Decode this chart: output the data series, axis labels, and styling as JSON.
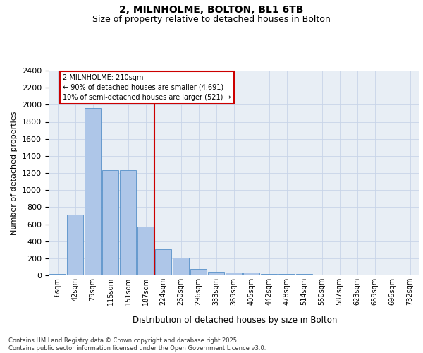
{
  "title_line1": "2, MILNHOLME, BOLTON, BL1 6TB",
  "title_line2": "Size of property relative to detached houses in Bolton",
  "xlabel": "Distribution of detached houses by size in Bolton",
  "ylabel": "Number of detached properties",
  "footnote": "Contains HM Land Registry data © Crown copyright and database right 2025.\nContains public sector information licensed under the Open Government Licence v3.0.",
  "bin_labels": [
    "6sqm",
    "42sqm",
    "79sqm",
    "115sqm",
    "151sqm",
    "187sqm",
    "224sqm",
    "260sqm",
    "296sqm",
    "333sqm",
    "369sqm",
    "405sqm",
    "442sqm",
    "478sqm",
    "514sqm",
    "550sqm",
    "587sqm",
    "623sqm",
    "659sqm",
    "696sqm",
    "732sqm"
  ],
  "bar_values": [
    15,
    710,
    1960,
    1235,
    1235,
    575,
    305,
    205,
    75,
    45,
    35,
    30,
    20,
    20,
    15,
    5,
    5,
    0,
    0,
    0,
    0
  ],
  "bar_color": "#aec6e8",
  "bar_edge_color": "#5590c8",
  "annotation_text": "2 MILNHOLME: 210sqm\n← 90% of detached houses are smaller (4,691)\n10% of semi-detached houses are larger (521) →",
  "vline_x": 6.0,
  "vline_color": "#cc0000",
  "annotation_box_color": "#cc0000",
  "ylim": [
    0,
    2400
  ],
  "yticks": [
    0,
    200,
    400,
    600,
    800,
    1000,
    1200,
    1400,
    1600,
    1800,
    2000,
    2200,
    2400
  ],
  "grid_color": "#c8d4e8",
  "bg_color": "#e8eef5",
  "title_fontsize": 10,
  "subtitle_fontsize": 9
}
